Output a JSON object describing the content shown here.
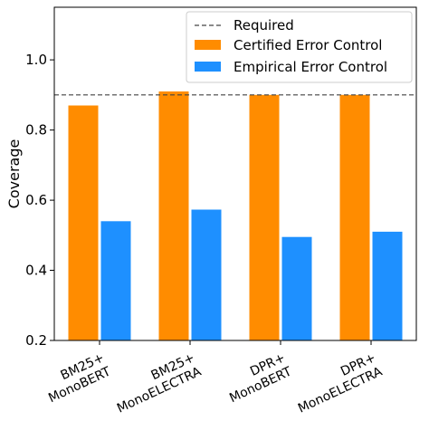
{
  "chart_data": {
    "type": "bar",
    "title": "",
    "xlabel": "",
    "ylabel": "Coverage",
    "ylim": [
      0.2,
      1.15
    ],
    "yticks": [
      "0.2",
      "0.4",
      "0.6",
      "0.8",
      "1.0"
    ],
    "categories": [
      [
        "BM25+",
        "MonoBERT"
      ],
      [
        "BM25+",
        "MonoELECTRA"
      ],
      [
        "DPR+",
        "MonoBERT"
      ],
      [
        "DPR+",
        "MonoELECTRA"
      ]
    ],
    "series": [
      {
        "name": "Certified Error Control",
        "color": "#ff8c00",
        "values": [
          0.87,
          0.91,
          0.9,
          0.9
        ]
      },
      {
        "name": "Empirical Error Control",
        "color": "#1e90ff",
        "values": [
          0.54,
          0.573,
          0.495,
          0.51
        ]
      }
    ],
    "reference_line": {
      "name": "Required",
      "value": 0.9,
      "style": "dashed",
      "color": "#444444"
    },
    "legend": {
      "placement": "top-right",
      "entries": [
        "Required",
        "Certified Error Control",
        "Empirical Error Control"
      ]
    },
    "grid": false
  }
}
